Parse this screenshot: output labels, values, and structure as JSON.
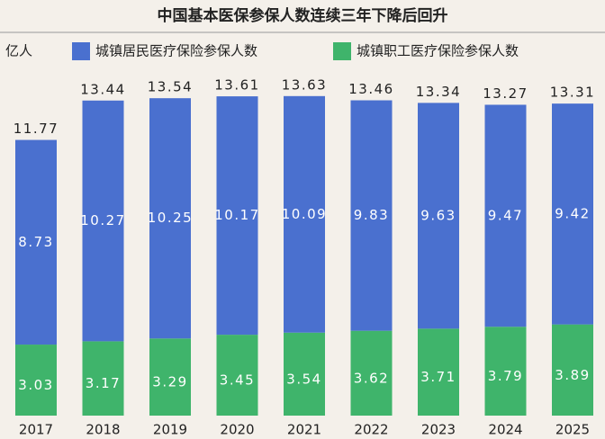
{
  "chart_data": {
    "type": "stacked_bar",
    "title": "中国基本医保参保人数连续三年下降后回升",
    "unit_label": "亿人",
    "categories": [
      "2017",
      "2018",
      "2019",
      "2020",
      "2021",
      "2022",
      "2023",
      "2024",
      "2025"
    ],
    "series": [
      {
        "name": "城镇职工医疗保险参保人数",
        "color": "#3fb46b",
        "values": [
          3.03,
          3.17,
          3.29,
          3.45,
          3.54,
          3.62,
          3.71,
          3.79,
          3.89
        ]
      },
      {
        "name": "城镇居民医疗保险参保人数",
        "color": "#4a70cf",
        "values": [
          8.73,
          10.27,
          10.25,
          10.17,
          10.09,
          9.83,
          9.63,
          9.47,
          9.42
        ]
      }
    ],
    "totals": [
      11.77,
      13.44,
      13.54,
      13.61,
      13.63,
      13.46,
      13.34,
      13.27,
      13.31
    ],
    "ylim": [
      0,
      17
    ]
  }
}
